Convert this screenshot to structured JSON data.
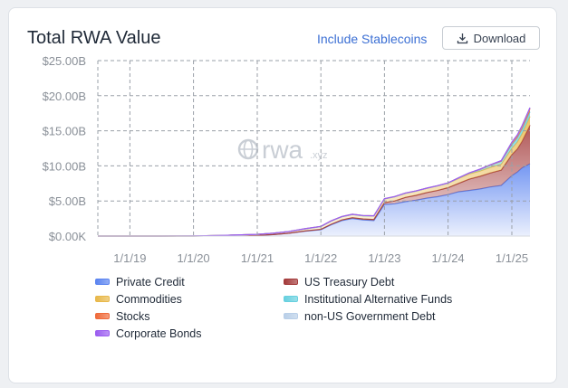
{
  "header": {
    "title": "Total RWA Value",
    "stablecoins_label": "Include Stablecoins",
    "download_label": "Download"
  },
  "watermark": "rwa",
  "watermark_suffix": ".xyz",
  "chart_data": {
    "type": "area",
    "title": "Total RWA Value",
    "xlabel": "",
    "ylabel": "",
    "stacked": true,
    "grid": true,
    "legend_position": "bottom",
    "x_ticks": [
      "1/1/19",
      "1/1/20",
      "1/1/21",
      "1/1/22",
      "1/1/23",
      "1/1/24",
      "1/1/25"
    ],
    "y_ticks": [
      "$0.00K",
      "$5.00B",
      "$10.00B",
      "$15.00B",
      "$20.00B",
      "$25.00B"
    ],
    "ylim": [
      0,
      25
    ],
    "y_unit": "B USD",
    "x_range": [
      "2018-07-01",
      "2025-04-15"
    ],
    "x": [
      "2018-07-01",
      "2019-01-01",
      "2019-07-01",
      "2020-01-01",
      "2020-07-01",
      "2021-01-01",
      "2021-04-01",
      "2021-07-01",
      "2021-10-01",
      "2022-01-01",
      "2022-03-01",
      "2022-05-01",
      "2022-07-01",
      "2022-09-01",
      "2022-11-01",
      "2023-01-01",
      "2023-03-01",
      "2023-05-01",
      "2023-07-01",
      "2023-09-01",
      "2023-11-01",
      "2024-01-01",
      "2024-03-01",
      "2024-05-01",
      "2024-07-01",
      "2024-09-01",
      "2024-11-01",
      "2025-01-01",
      "2025-02-01",
      "2025-03-01",
      "2025-04-15"
    ],
    "series": [
      {
        "name": "Private Credit",
        "color": "#5b84f0",
        "values": [
          0.0,
          0.0,
          0.0,
          0.0,
          0.05,
          0.1,
          0.2,
          0.4,
          0.7,
          0.9,
          1.6,
          2.2,
          2.5,
          2.3,
          2.2,
          4.5,
          4.6,
          4.9,
          5.1,
          5.4,
          5.6,
          5.9,
          6.3,
          6.5,
          6.7,
          7.0,
          7.2,
          8.6,
          9.1,
          9.7,
          10.3
        ]
      },
      {
        "name": "US Treasury Debt",
        "color": "#a33a3a",
        "values": [
          0.0,
          0.0,
          0.0,
          0.0,
          0.0,
          0.0,
          0.0,
          0.0,
          0.02,
          0.05,
          0.08,
          0.1,
          0.12,
          0.14,
          0.16,
          0.25,
          0.4,
          0.6,
          0.7,
          0.8,
          0.9,
          1.0,
          1.2,
          1.6,
          1.8,
          2.0,
          2.2,
          3.0,
          3.3,
          3.8,
          5.5
        ]
      },
      {
        "name": "Commodities",
        "color": "#e8b84a",
        "values": [
          0.0,
          0.0,
          0.0,
          0.02,
          0.05,
          0.15,
          0.2,
          0.25,
          0.3,
          0.4,
          0.45,
          0.45,
          0.45,
          0.45,
          0.5,
          0.55,
          0.6,
          0.6,
          0.6,
          0.6,
          0.65,
          0.65,
          0.7,
          0.75,
          0.75,
          0.8,
          0.85,
          0.9,
          1.0,
          1.1,
          1.25
        ]
      },
      {
        "name": "Institutional Alternative Funds",
        "color": "#67d0df",
        "values": [
          0.0,
          0.0,
          0.0,
          0.0,
          0.0,
          0.0,
          0.0,
          0.0,
          0.0,
          0.0,
          0.0,
          0.0,
          0.0,
          0.0,
          0.0,
          0.0,
          0.0,
          0.0,
          0.0,
          0.0,
          0.0,
          0.0,
          0.05,
          0.1,
          0.2,
          0.3,
          0.4,
          0.5,
          0.55,
          0.6,
          0.65
        ]
      },
      {
        "name": "Stocks",
        "color": "#ef6a3a",
        "values": [
          0.0,
          0.0,
          0.0,
          0.0,
          0.0,
          0.0,
          0.0,
          0.0,
          0.02,
          0.03,
          0.03,
          0.03,
          0.03,
          0.03,
          0.03,
          0.03,
          0.03,
          0.03,
          0.03,
          0.03,
          0.03,
          0.03,
          0.03,
          0.03,
          0.03,
          0.03,
          0.03,
          0.3,
          0.35,
          0.4,
          0.45
        ]
      },
      {
        "name": "non-US Government Debt",
        "color": "#b9cfe8",
        "values": [
          0.0,
          0.0,
          0.0,
          0.0,
          0.0,
          0.0,
          0.0,
          0.0,
          0.0,
          0.0,
          0.0,
          0.0,
          0.0,
          0.0,
          0.0,
          0.0,
          0.0,
          0.0,
          0.0,
          0.0,
          0.0,
          0.0,
          0.01,
          0.02,
          0.03,
          0.04,
          0.05,
          0.06,
          0.08,
          0.1,
          0.12
        ]
      },
      {
        "name": "Corporate Bonds",
        "color": "#9b5cf0",
        "values": [
          0.0,
          0.0,
          0.0,
          0.0,
          0.0,
          0.0,
          0.0,
          0.0,
          0.0,
          0.0,
          0.0,
          0.0,
          0.0,
          0.0,
          0.0,
          0.0,
          0.0,
          0.0,
          0.0,
          0.0,
          0.0,
          0.0,
          0.0,
          0.0,
          0.01,
          0.01,
          0.02,
          0.02,
          0.02,
          0.03,
          0.03
        ]
      }
    ]
  }
}
